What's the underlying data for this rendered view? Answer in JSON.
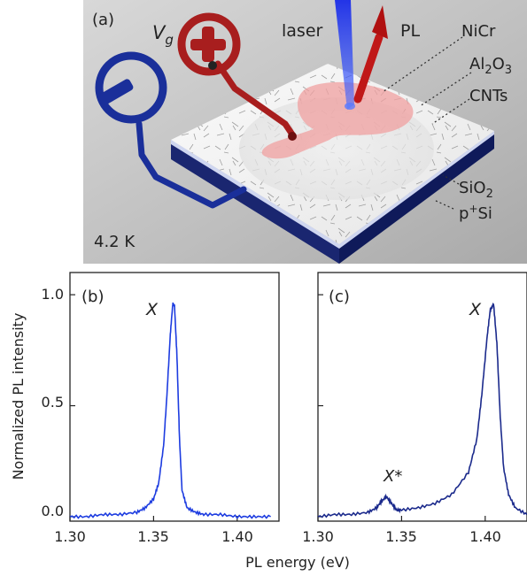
{
  "panel_a": {
    "label": "(a)",
    "gate_voltage_symbol": "V",
    "gate_voltage_subscript": "g",
    "laser": "laser",
    "pl": "PL",
    "nicr": "NiCr",
    "al2o3_main": "Al",
    "al2o3_sub1": "2",
    "al2o3_mid": "O",
    "al2o3_sub2": "3",
    "cnts": "CNTs",
    "sio2_main": "SiO",
    "sio2_sub": "2",
    "psi_p": "p",
    "psi_sup": "+",
    "psi_si": "Si",
    "temperature": "4.2 K",
    "colors": {
      "gate_negative": "#1a2f9a",
      "gate_positive": "#a81e1e",
      "laser_beam": "#1e3cff",
      "pl_beam": "#c01818",
      "substrate": "#15206a"
    }
  },
  "panel_b": {
    "label": "(b)",
    "peak_label": "X"
  },
  "panel_c": {
    "label": "(c)",
    "peak_label": "X",
    "peak2_label": "X*"
  },
  "axes": {
    "y_label": "Normalized PL intensity",
    "x_label": "PL energy (eV)"
  },
  "chart_data": [
    {
      "type": "line",
      "panel": "(b)",
      "xlim": [
        1.3,
        1.425
      ],
      "ylim": [
        -0.02,
        1.1
      ],
      "xticks": [
        "1.30",
        "1.35",
        "1.40"
      ],
      "yticks": [
        "0.0",
        "0.5",
        "1.0"
      ],
      "series": [
        {
          "color": "#1d3ce0",
          "x": [
            1.3,
            1.31,
            1.32,
            1.33,
            1.34,
            1.345,
            1.35,
            1.353,
            1.356,
            1.358,
            1.36,
            1.3615,
            1.3625,
            1.364,
            1.3655,
            1.367,
            1.37,
            1.375,
            1.38,
            1.39,
            1.4,
            1.41,
            1.42
          ],
          "y": [
            0.0,
            0.0,
            0.01,
            0.01,
            0.02,
            0.04,
            0.08,
            0.15,
            0.32,
            0.55,
            0.82,
            0.96,
            0.95,
            0.72,
            0.35,
            0.12,
            0.04,
            0.02,
            0.01,
            0.01,
            0.0,
            0.0,
            0.0
          ]
        }
      ]
    },
    {
      "type": "line",
      "panel": "(c)",
      "xlim": [
        1.3,
        1.425
      ],
      "ylim": [
        -0.02,
        1.1
      ],
      "xticks": [
        "1.30",
        "1.35",
        "1.40"
      ],
      "yticks": [
        "0.0",
        "0.5",
        "1.0"
      ],
      "series": [
        {
          "color": "#1b2a8c",
          "x": [
            1.3,
            1.31,
            1.32,
            1.33,
            1.335,
            1.338,
            1.341,
            1.344,
            1.347,
            1.35,
            1.36,
            1.37,
            1.38,
            1.39,
            1.395,
            1.398,
            1.401,
            1.403,
            1.405,
            1.407,
            1.409,
            1.411,
            1.414,
            1.418,
            1.425
          ],
          "y": [
            0.0,
            0.01,
            0.01,
            0.02,
            0.04,
            0.07,
            0.09,
            0.06,
            0.03,
            0.03,
            0.04,
            0.06,
            0.1,
            0.2,
            0.35,
            0.55,
            0.8,
            0.93,
            0.96,
            0.78,
            0.45,
            0.22,
            0.1,
            0.04,
            0.01
          ]
        }
      ]
    }
  ]
}
